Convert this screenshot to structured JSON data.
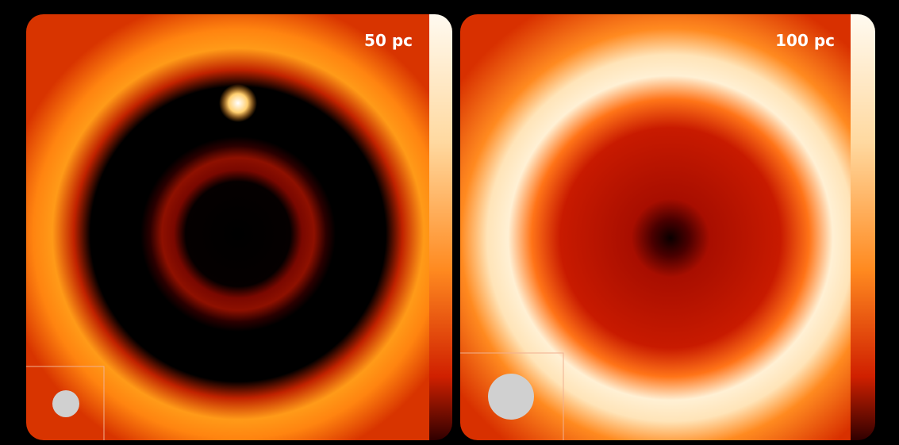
{
  "panels": [
    {
      "label": "50 pc"
    },
    {
      "label": "100 pc"
    }
  ]
}
